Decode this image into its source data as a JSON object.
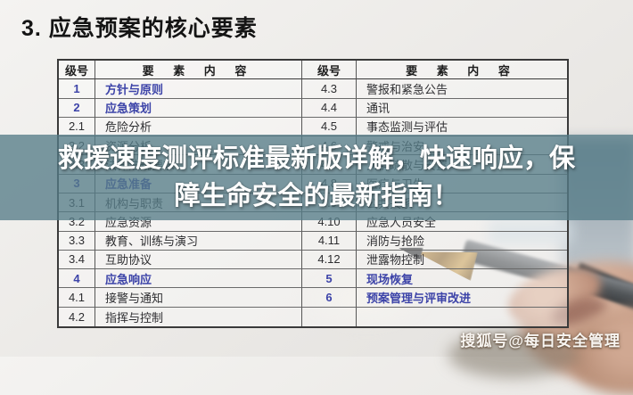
{
  "slide": {
    "title": "3. 应急预案的核心要素",
    "watermark": "搜狐号@每日安全管理"
  },
  "overlay": {
    "full_text": "救援速度测评标准最新版详解，快速响应，保障生命安全的最新指南！",
    "line1": "救援速度测评标准最新版详解，快速响应，保",
    "line2": "障生命安全的最新指南！"
  },
  "colors": {
    "accent_blue": "#3c43a8",
    "band_teal": "rgba(86,124,136,0.78)",
    "slide_background": "#ebe9e6"
  },
  "table": {
    "header": {
      "level": "级号",
      "content": "要 素 内 容"
    },
    "left_rows": [
      {
        "level": "1",
        "content": "方针与原则",
        "main": true
      },
      {
        "level": "2",
        "content": "应急策划",
        "main": true
      },
      {
        "level": "2.1",
        "content": "危险分析",
        "main": false
      },
      {
        "level": "2.2",
        "content": "资源分析",
        "main": false
      },
      {
        "level": "2.3",
        "content": "法律法规要求",
        "main": false
      },
      {
        "level": "3",
        "content": "应急准备",
        "main": true
      },
      {
        "level": "3.1",
        "content": "机构与职责",
        "main": false
      },
      {
        "level": "3.2",
        "content": "应急资源",
        "main": false
      },
      {
        "level": "3.3",
        "content": "教育、训练与演习",
        "main": false
      },
      {
        "level": "3.4",
        "content": "互助协议",
        "main": false
      },
      {
        "level": "4",
        "content": "应急响应",
        "main": true
      },
      {
        "level": "4.1",
        "content": "接警与通知",
        "main": false
      },
      {
        "level": "4.2",
        "content": "指挥与控制",
        "main": false
      }
    ],
    "right_rows": [
      {
        "level": "4.3",
        "content": "警报和紧急公告",
        "main": false
      },
      {
        "level": "4.4",
        "content": "通讯",
        "main": false
      },
      {
        "level": "4.5",
        "content": "事态监测与评估",
        "main": false
      },
      {
        "level": "4.6",
        "content": "警戒与治安",
        "main": false
      },
      {
        "level": "4.7",
        "content": "人群疏散与安置",
        "main": false
      },
      {
        "level": "4.8",
        "content": "医疗与卫生",
        "main": false
      },
      {
        "level": "4.9",
        "content": "公共关系",
        "main": false
      },
      {
        "level": "4.10",
        "content": "应急人员安全",
        "main": false
      },
      {
        "level": "4.11",
        "content": "消防与抢险",
        "main": false
      },
      {
        "level": "4.12",
        "content": "泄露物控制",
        "main": false
      },
      {
        "level": "5",
        "content": "现场恢复",
        "main": true
      },
      {
        "level": "6",
        "content": "预案管理与评审改进",
        "main": true
      },
      {
        "level": "",
        "content": "",
        "main": false
      }
    ]
  }
}
